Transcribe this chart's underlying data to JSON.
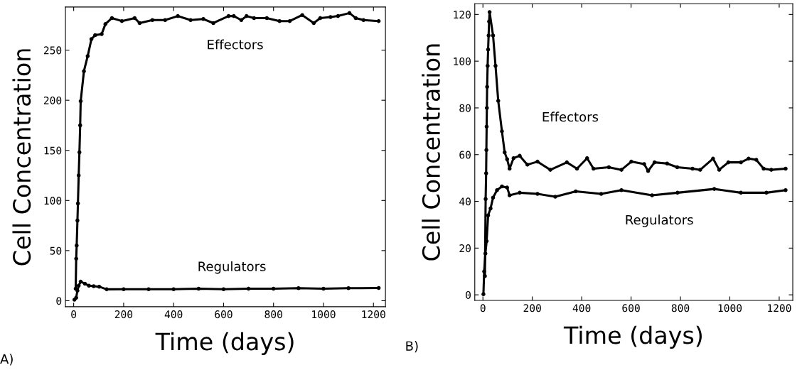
{
  "chart_data": [
    {
      "type": "line",
      "xlabel": "Time (days)",
      "ylabel": "Cell Concentration",
      "annotations": [
        "A)"
      ],
      "marker": "circle",
      "grid": false,
      "xlim": [
        -33,
        1248
      ],
      "ylim": [
        -6,
        293
      ],
      "xticks": [
        0,
        200,
        400,
        600,
        800,
        1000,
        1200
      ],
      "yticks": [
        0,
        50,
        100,
        150,
        200,
        250
      ],
      "series": [
        {
          "name": "Effectors",
          "color": "#000000",
          "x": [
            8,
            10,
            12,
            15,
            17,
            20,
            23,
            26,
            28,
            41,
            56,
            71,
            86,
            112,
            127,
            153,
            193,
            244,
            264,
            315,
            366,
            417,
            468,
            519,
            559,
            620,
            641,
            671,
            692,
            722,
            773,
            824,
            865,
            915,
            961,
            987,
            1028,
            1058,
            1104,
            1129,
            1160,
            1221
          ],
          "values": [
            12,
            42,
            55,
            80,
            97,
            125,
            148,
            175,
            199,
            229,
            244,
            261,
            265,
            266,
            276,
            282,
            279,
            282,
            277,
            280,
            280,
            284,
            280,
            281,
            277,
            284,
            284,
            280,
            284,
            282,
            282,
            279,
            279,
            285,
            277,
            282,
            283,
            284,
            287,
            282,
            280,
            279
          ]
        },
        {
          "name": "Regulators",
          "color": "#000000",
          "x": [
            3,
            10,
            15,
            20,
            28,
            45,
            61,
            80,
            102,
            132,
            200,
            300,
            400,
            500,
            600,
            700,
            800,
            900,
            1000,
            1100,
            1221
          ],
          "values": [
            1,
            3,
            10,
            15,
            19,
            17,
            15,
            14.5,
            14,
            11.4,
            11.5,
            11.5,
            11.5,
            12,
            11.5,
            12,
            12,
            12.5,
            12,
            12.5,
            12.7
          ]
        }
      ]
    },
    {
      "type": "line",
      "xlabel": "Time (days)",
      "ylabel": "Cell Concentration",
      "annotations": [
        "B)"
      ],
      "marker": "circle",
      "grid": false,
      "xlim": [
        -33,
        1255
      ],
      "ylim": [
        -2.4,
        124.6
      ],
      "xticks": [
        0,
        200,
        400,
        600,
        800,
        1000,
        1200
      ],
      "yticks": [
        0,
        20,
        40,
        60,
        80,
        100,
        120
      ],
      "series": [
        {
          "name": "Effectors",
          "color": "#000000",
          "x": [
            8,
            11,
            13,
            14,
            15,
            16,
            17,
            19,
            21,
            23,
            25,
            27,
            41,
            51,
            62,
            77,
            88,
            98,
            108,
            124,
            149,
            180,
            221,
            273,
            340,
            381,
            422,
            448,
            510,
            561,
            601,
            653,
            669,
            695,
            746,
            787,
            849,
            880,
            932,
            957,
            994,
            1045,
            1076,
            1107,
            1137,
            1168,
            1226
          ],
          "values": [
            8,
            41,
            52,
            62,
            72,
            80,
            89,
            98,
            105,
            111,
            117,
            121,
            111,
            98,
            83,
            70,
            61,
            58,
            54,
            58.5,
            59.5,
            55.7,
            57,
            53.5,
            56.7,
            54,
            58.5,
            54,
            54.6,
            53.5,
            57,
            56,
            53,
            56.7,
            56.2,
            54.6,
            54,
            53.5,
            58.3,
            53.5,
            56.7,
            56.7,
            58.3,
            57.8,
            54,
            53.5,
            54
          ]
        },
        {
          "name": "Regulators",
          "color": "#000000",
          "x": [
            2,
            5,
            10,
            15,
            21,
            31,
            41,
            57,
            77,
            98,
            108,
            149,
            221,
            293,
            376,
            479,
            561,
            685,
            788,
            937,
            1045,
            1148,
            1226
          ],
          "values": [
            0.3,
            10,
            17.7,
            23,
            34,
            37,
            41.6,
            44.8,
            46.4,
            45.9,
            42.6,
            43.7,
            43.2,
            42,
            44.3,
            43.2,
            44.8,
            42.6,
            43.7,
            45.3,
            43.7,
            43.7,
            44.8
          ]
        }
      ]
    }
  ]
}
